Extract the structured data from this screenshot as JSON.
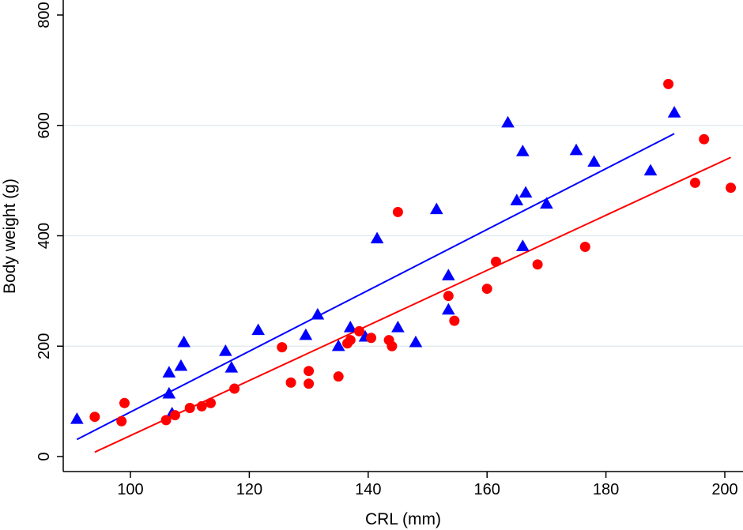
{
  "chart_data": {
    "type": "scatter",
    "title": "",
    "xlabel": "CRL (mm)",
    "ylabel": "Body weight (g)",
    "xlim": [
      90,
      202
    ],
    "ylim": [
      -15,
      810
    ],
    "x_ticks": [
      100,
      120,
      140,
      160,
      180,
      200
    ],
    "y_ticks": [
      0,
      200,
      400,
      600,
      800
    ],
    "horizontal_grid": true,
    "series": [
      {
        "name": "triangle-series",
        "marker": "triangle",
        "color": "#0000ff",
        "points": [
          [
            91,
            68
          ],
          [
            106.5,
            152
          ],
          [
            106.5,
            114
          ],
          [
            107,
            78
          ],
          [
            108.5,
            164
          ],
          [
            109,
            207
          ],
          [
            116,
            191
          ],
          [
            117,
            161
          ],
          [
            121.5,
            229
          ],
          [
            129.5,
            220
          ],
          [
            131.5,
            257
          ],
          [
            135,
            200
          ],
          [
            137,
            234
          ],
          [
            139.5,
            217
          ],
          [
            141.5,
            395
          ],
          [
            145,
            234
          ],
          [
            148,
            207
          ],
          [
            151.5,
            448
          ],
          [
            153.5,
            328
          ],
          [
            153.5,
            266
          ],
          [
            163.5,
            605
          ],
          [
            165,
            464
          ],
          [
            166,
            553
          ],
          [
            166,
            381
          ],
          [
            166.5,
            478
          ],
          [
            170,
            458
          ],
          [
            175,
            555
          ],
          [
            178,
            534
          ],
          [
            187.5,
            518
          ],
          [
            191.5,
            623
          ]
        ],
        "fit": {
          "x": [
            91,
            191.5
          ],
          "y": [
            31,
            585
          ]
        }
      },
      {
        "name": "circle-series",
        "marker": "circle",
        "color": "#ff0000",
        "points": [
          [
            94,
            72
          ],
          [
            98.5,
            64
          ],
          [
            99,
            97
          ],
          [
            106,
            66
          ],
          [
            107.5,
            75
          ],
          [
            110,
            88
          ],
          [
            112,
            91
          ],
          [
            113.5,
            97
          ],
          [
            117.5,
            123
          ],
          [
            125.5,
            198
          ],
          [
            127,
            134
          ],
          [
            130,
            155
          ],
          [
            130,
            132
          ],
          [
            135,
            145
          ],
          [
            136.5,
            205
          ],
          [
            137,
            211
          ],
          [
            138.5,
            227
          ],
          [
            140.5,
            215
          ],
          [
            143.5,
            211
          ],
          [
            144,
            200
          ],
          [
            145,
            443
          ],
          [
            153.5,
            291
          ],
          [
            154.5,
            246
          ],
          [
            160,
            304
          ],
          [
            161.5,
            353
          ],
          [
            168.5,
            348
          ],
          [
            176.5,
            380
          ],
          [
            190.5,
            675
          ],
          [
            195,
            496
          ],
          [
            196.5,
            575
          ],
          [
            201,
            487
          ]
        ],
        "fit": {
          "x": [
            94,
            201
          ],
          "y": [
            8,
            542
          ]
        }
      }
    ]
  }
}
